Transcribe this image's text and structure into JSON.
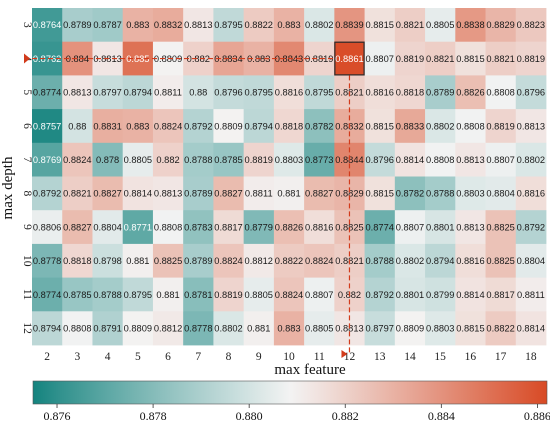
{
  "chart_data": {
    "type": "heatmap",
    "xlabel": "max feature",
    "ylabel": "max depth",
    "x_categories": [
      "2",
      "3",
      "4",
      "5",
      "6",
      "7",
      "8",
      "9",
      "10",
      "11",
      "12",
      "13",
      "14",
      "15",
      "16",
      "17",
      "18"
    ],
    "y_categories": [
      "3",
      "4",
      "5",
      "6",
      "7",
      "8",
      "9",
      "10",
      "11",
      "12"
    ],
    "values": [
      [
        "0.8764",
        "0.8789",
        "0.8787",
        "0.883",
        "0.8832",
        "0.8813",
        "0.8795",
        "0.8822",
        "0.883",
        "0.8802",
        "0.8839",
        "0.8815",
        "0.8821",
        "0.8805",
        "0.8838",
        "0.8829",
        "0.8823"
      ],
      [
        "0.8762",
        "0.884",
        "0.8813",
        "0.885",
        "0.8809",
        "0.882",
        "0.8834",
        "0.883",
        "0.8843",
        "0.8819",
        "0.8861",
        "0.8807",
        "0.8819",
        "0.8821",
        "0.8815",
        "0.8821",
        "0.8819"
      ],
      [
        "0.8774",
        "0.8813",
        "0.8797",
        "0.8794",
        "0.8811",
        "0.88",
        "0.8796",
        "0.8795",
        "0.8816",
        "0.8795",
        "0.8821",
        "0.8816",
        "0.8818",
        "0.8789",
        "0.8826",
        "0.8808",
        "0.8796"
      ],
      [
        "0.8757",
        "0.88",
        "0.8831",
        "0.883",
        "0.8824",
        "0.8792",
        "0.8809",
        "0.8794",
        "0.8818",
        "0.8782",
        "0.8832",
        "0.8815",
        "0.8833",
        "0.8802",
        "0.8808",
        "0.8819",
        "0.8813"
      ],
      [
        "0.8769",
        "0.8824",
        "0.878",
        "0.8805",
        "0.882",
        "0.8788",
        "0.8785",
        "0.8819",
        "0.8803",
        "0.8773",
        "0.8844",
        "0.8796",
        "0.8814",
        "0.8808",
        "0.8813",
        "0.8807",
        "0.8802"
      ],
      [
        "0.8792",
        "0.8821",
        "0.8827",
        "0.8814",
        "0.8813",
        "0.8789",
        "0.8827",
        "0.8811",
        "0.881",
        "0.8827",
        "0.8829",
        "0.8815",
        "0.8782",
        "0.8788",
        "0.8803",
        "0.8804",
        "0.8816"
      ],
      [
        "0.8806",
        "0.8827",
        "0.8804",
        "0.8771",
        "0.8808",
        "0.8783",
        "0.8817",
        "0.8779",
        "0.8826",
        "0.8816",
        "0.8825",
        "0.8774",
        "0.8807",
        "0.8801",
        "0.8813",
        "0.8825",
        "0.8792"
      ],
      [
        "0.8778",
        "0.8818",
        "0.8798",
        "0.881",
        "0.8825",
        "0.8789",
        "0.8824",
        "0.8812",
        "0.8822",
        "0.8824",
        "0.8821",
        "0.8788",
        "0.8802",
        "0.8794",
        "0.8816",
        "0.8825",
        "0.8804"
      ],
      [
        "0.8774",
        "0.8785",
        "0.8788",
        "0.8795",
        "0.881",
        "0.8781",
        "0.8819",
        "0.8805",
        "0.8824",
        "0.8807",
        "0.882",
        "0.8792",
        "0.8801",
        "0.8799",
        "0.8814",
        "0.8817",
        "0.8811"
      ],
      [
        "0.8794",
        "0.8808",
        "0.8791",
        "0.8809",
        "0.8812",
        "0.8778",
        "0.8802",
        "0.881",
        "0.883",
        "0.8805",
        "0.8813",
        "0.8797",
        "0.8809",
        "0.8803",
        "0.8815",
        "0.8822",
        "0.8814"
      ]
    ],
    "highlight": {
      "max_feature": "12",
      "max_depth": "4",
      "value": "0.8861"
    },
    "colorbar": {
      "range": [
        0.8755,
        0.8862
      ],
      "ticks": [
        "0.876",
        "0.878",
        "0.880",
        "0.882",
        "0.884",
        "0.886"
      ],
      "colors": {
        "low": "#14837e",
        "mid": "#f3f3f3",
        "high": "#d84a25"
      }
    },
    "marker_color": "#d23b1b"
  }
}
